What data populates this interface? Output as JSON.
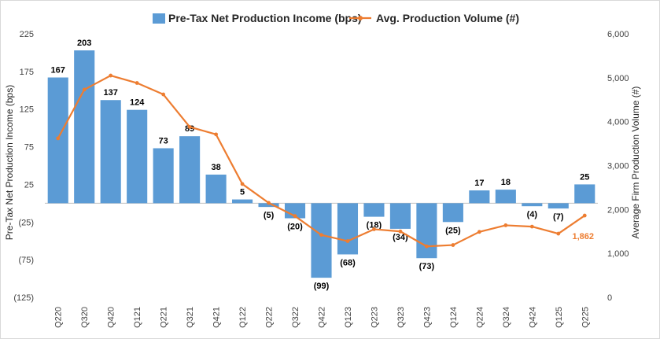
{
  "chart_data": {
    "type": "bar",
    "categories": [
      "Q220",
      "Q320",
      "Q420",
      "Q121",
      "Q221",
      "Q321",
      "Q421",
      "Q122",
      "Q222",
      "Q322",
      "Q422",
      "Q123",
      "Q223",
      "Q323",
      "Q423",
      "Q124",
      "Q224",
      "Q324",
      "Q424",
      "Q125",
      "Q225"
    ],
    "series": [
      {
        "name": "Pre-Tax Net Production Income (bps)",
        "type": "bar",
        "axis": "left",
        "color": "#5b9bd5",
        "values": [
          167,
          203,
          137,
          124,
          73,
          89,
          38,
          5,
          -5,
          -20,
          -99,
          -68,
          -18,
          -34,
          -73,
          -25,
          17,
          18,
          -4,
          -7,
          25
        ],
        "labels": [
          "167",
          "203",
          "137",
          "124",
          "73",
          "89",
          "38",
          "5",
          "(5)",
          "(20)",
          "(99)",
          "(68)",
          "(18)",
          "(34)",
          "(73)",
          "(25)",
          "17",
          "18",
          "(4)",
          "(7)",
          "25"
        ]
      },
      {
        "name": "Avg. Production Volume (#)",
        "type": "line",
        "axis": "right",
        "color": "#ed7d31",
        "values": [
          3620,
          4730,
          5050,
          4880,
          4620,
          3880,
          3710,
          2580,
          2150,
          1850,
          1420,
          1280,
          1550,
          1500,
          1160,
          1190,
          1490,
          1640,
          1610,
          1450,
          1862
        ],
        "last_label": "1,862"
      }
    ],
    "y_left": {
      "label": "Pre-Tax Net Production Income (bps)",
      "ylim": [
        -125,
        225
      ],
      "ticks": [
        225,
        175,
        125,
        75,
        25,
        -25,
        -75,
        -125
      ],
      "tick_labels": [
        "225",
        "175",
        "125",
        "75",
        "25",
        "(25)",
        "(75)",
        "(125)"
      ]
    },
    "y_right": {
      "label": "Average Firm Production Volume (#)",
      "ylim": [
        0,
        6000
      ],
      "ticks": [
        6000,
        5000,
        4000,
        3000,
        2000,
        1000,
        0
      ],
      "tick_labels": [
        "6,000",
        "5,000",
        "4,000",
        "3,000",
        "2,000",
        "1,000",
        "0"
      ]
    },
    "legend": {
      "placement": "top-center"
    },
    "grid": false
  }
}
